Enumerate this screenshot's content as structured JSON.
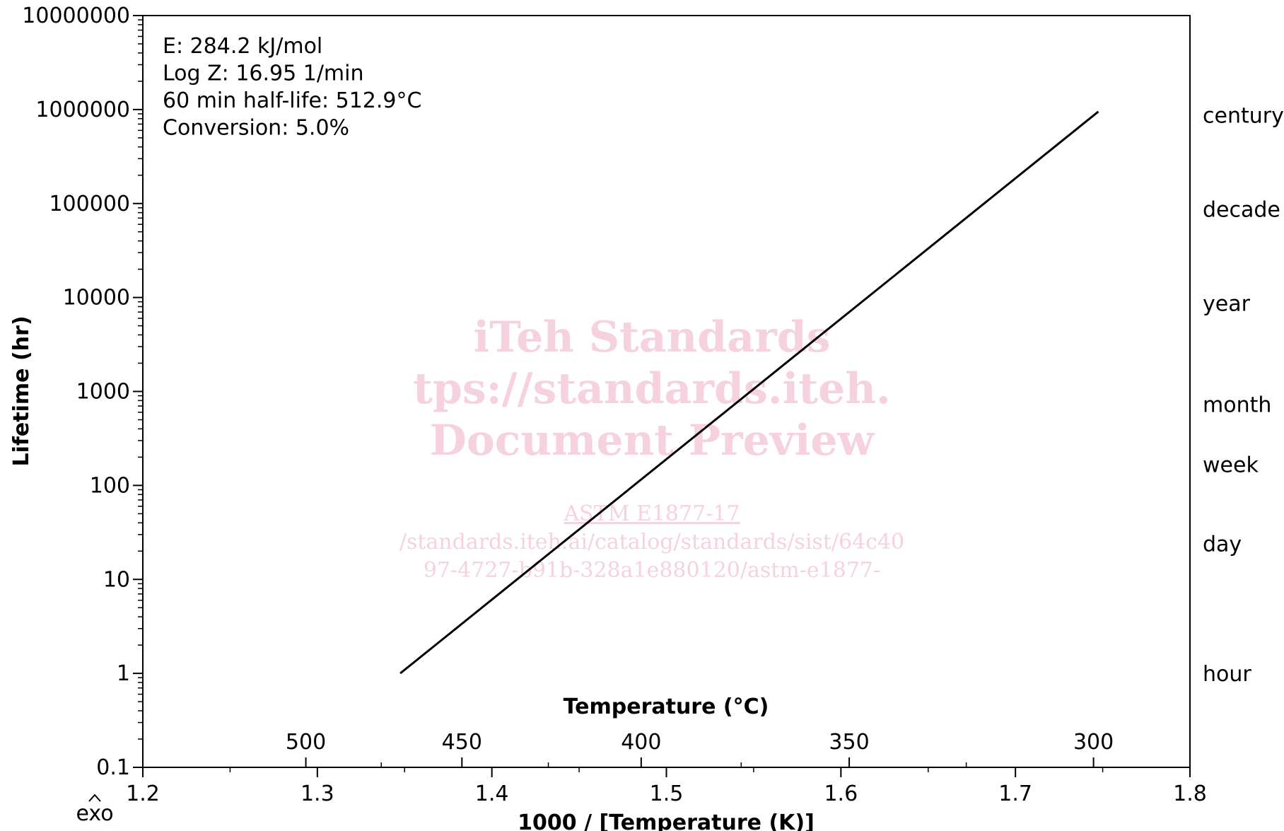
{
  "chart_data": {
    "type": "line",
    "title": "",
    "xlabel": "1000 / [Temperature (K)]",
    "ylabel": "Lifetime (hr)",
    "xlim": [
      1.2,
      1.8
    ],
    "ylim": [
      0.1,
      10000000
    ],
    "y_scale": "log",
    "grid": false,
    "x_ticks": [
      "1.2",
      "1.3",
      "1.4",
      "1.5",
      "1.6",
      "1.7",
      "1.8"
    ],
    "y_ticks": [
      "0.1",
      "1",
      "10",
      "100",
      "1000",
      "10000",
      "100000",
      "1000000",
      "10000000"
    ],
    "top_axis": {
      "label": "Temperature (°C)",
      "ticks": [
        "500",
        "450",
        "400",
        "350",
        "300"
      ]
    },
    "right_labels": [
      {
        "hours": 1,
        "label": "hour"
      },
      {
        "hours": 24,
        "label": "day"
      },
      {
        "hours": 168,
        "label": "week"
      },
      {
        "hours": 730,
        "label": "month"
      },
      {
        "hours": 8760,
        "label": "year"
      },
      {
        "hours": 87600,
        "label": "decade"
      },
      {
        "hours": 876000,
        "label": "century"
      }
    ],
    "annotations": [
      "E: 284.2 kJ/mol",
      "Log Z: 16.95 1/min",
      "60 min half-life: 512.9°C",
      "Conversion: 5.0%"
    ],
    "series": [
      {
        "x": [
          1.3475,
          1.7475
        ],
        "y": [
          1,
          950000
        ]
      }
    ],
    "corner_label": "exo",
    "watermark": [
      "iTeh Standards",
      "tps://standards.iteh.",
      "Document Preview",
      "ASTM E1877-17",
      "/standards.iteh.ai/catalog/standards/sist/64c40",
      "97-4727-b91b-328a1e880120/astm-e1877-"
    ]
  }
}
